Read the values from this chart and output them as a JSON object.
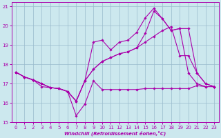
{
  "xlabel": "Windchill (Refroidissement éolien,°C)",
  "bg_color": "#cce8ee",
  "line_color": "#aa00aa",
  "grid_color": "#99bbcc",
  "xlim": [
    -0.5,
    23.5
  ],
  "ylim": [
    15,
    21.2
  ],
  "xticks": [
    0,
    1,
    2,
    3,
    4,
    5,
    6,
    7,
    8,
    9,
    10,
    11,
    12,
    13,
    14,
    15,
    16,
    17,
    18,
    19,
    20,
    21,
    22,
    23
  ],
  "yticks": [
    15,
    16,
    17,
    18,
    19,
    20,
    21
  ],
  "series1_x": [
    0,
    1,
    2,
    3,
    4,
    5,
    6,
    7,
    8,
    9,
    10,
    11,
    12,
    13,
    14,
    15,
    16,
    17,
    18,
    19,
    20,
    21,
    22,
    23
  ],
  "series1_y": [
    17.6,
    17.35,
    17.2,
    16.85,
    16.8,
    16.75,
    16.6,
    15.35,
    15.95,
    17.15,
    16.7,
    16.7,
    16.7,
    16.7,
    16.7,
    16.75,
    16.75,
    16.75,
    16.75,
    16.75,
    16.75,
    16.9,
    16.85,
    16.85
  ],
  "series2_x": [
    0,
    1,
    2,
    3,
    4,
    5,
    6,
    7,
    8,
    9,
    10,
    11,
    12,
    13,
    14,
    15,
    16,
    17,
    18,
    19,
    20,
    21,
    22,
    23
  ],
  "series2_y": [
    17.6,
    17.35,
    17.2,
    17.0,
    16.8,
    16.75,
    16.6,
    16.1,
    17.15,
    19.15,
    19.25,
    18.75,
    19.15,
    19.25,
    19.65,
    20.4,
    20.9,
    20.35,
    19.75,
    19.85,
    19.85,
    17.55,
    17.0,
    16.85
  ],
  "series3_x": [
    0,
    1,
    2,
    3,
    4,
    5,
    6,
    7,
    8,
    9,
    10,
    11,
    12,
    13,
    14,
    15,
    16,
    17,
    18,
    19,
    20,
    21,
    22,
    23
  ],
  "series3_y": [
    17.6,
    17.35,
    17.2,
    17.0,
    16.8,
    16.75,
    16.6,
    16.1,
    17.15,
    17.75,
    18.15,
    18.35,
    18.55,
    18.65,
    18.85,
    19.15,
    19.45,
    19.75,
    19.95,
    18.45,
    18.45,
    17.55,
    17.0,
    16.85
  ],
  "series4_x": [
    0,
    1,
    2,
    3,
    4,
    5,
    6,
    7,
    8,
    9,
    10,
    11,
    12,
    13,
    14,
    15,
    16,
    17,
    18,
    19,
    20,
    21,
    22,
    23
  ],
  "series4_y": [
    17.6,
    17.35,
    17.2,
    17.0,
    16.8,
    16.75,
    16.6,
    16.1,
    17.15,
    17.75,
    18.15,
    18.35,
    18.55,
    18.65,
    18.85,
    19.6,
    20.75,
    20.35,
    19.75,
    19.85,
    17.55,
    17.0,
    16.85,
    16.85
  ]
}
